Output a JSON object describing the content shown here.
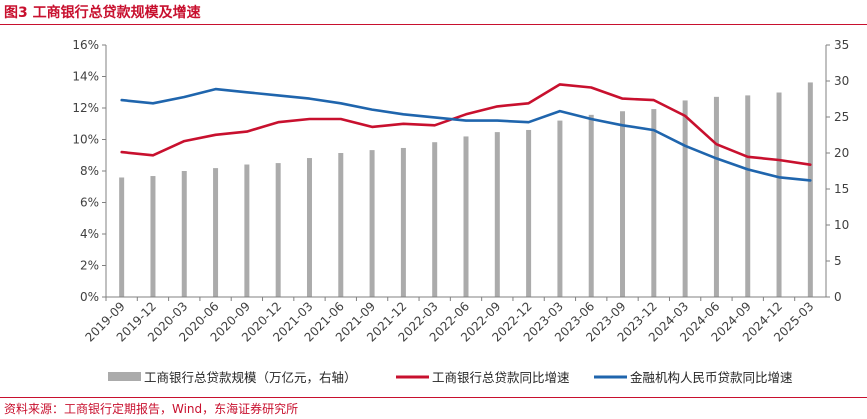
{
  "figure": {
    "title": "图3 工商银行总贷款规模及增速",
    "source": "资料来源：工商银行定期报告，Wind，东海证券研究所"
  },
  "colors": {
    "bar": "#ababab",
    "line_icbc": "#c8102e",
    "line_financial": "#1f65ad",
    "accent": "#c8102e"
  },
  "chart_data": {
    "type": "bar",
    "title": "",
    "categories": [
      "2019-09",
      "2019-12",
      "2020-03",
      "2020-06",
      "2020-09",
      "2020-12",
      "2021-03",
      "2021-06",
      "2021-09",
      "2021-12",
      "2022-03",
      "2022-06",
      "2022-09",
      "2022-12",
      "2023-03",
      "2023-06",
      "2023-09",
      "2023-12",
      "2024-03",
      "2024-06",
      "2024-09",
      "2024-12",
      "2025-03"
    ],
    "left_axis": {
      "range": [
        0,
        16
      ],
      "ticks": [
        "0%",
        "2%",
        "4%",
        "6%",
        "8%",
        "10%",
        "12%",
        "14%",
        "16%"
      ]
    },
    "right_axis": {
      "range": [
        0,
        35
      ],
      "ticks": [
        "0",
        "5",
        "10",
        "15",
        "20",
        "25",
        "30",
        "35"
      ]
    },
    "grid": false,
    "legend_position": "bottom",
    "series": [
      {
        "name": "工商银行总贷款规模（万亿元，右轴）",
        "kind": "bar",
        "axis": "right",
        "values": [
          16.6,
          16.8,
          17.5,
          17.9,
          18.4,
          18.6,
          19.3,
          20.0,
          20.4,
          20.7,
          21.5,
          22.3,
          22.9,
          23.2,
          24.5,
          25.3,
          25.8,
          26.1,
          27.3,
          27.8,
          28.0,
          28.4,
          29.8
        ]
      },
      {
        "name": "工商银行总贷款同比增速",
        "kind": "line",
        "axis": "left",
        "values": [
          9.2,
          9.0,
          9.9,
          10.3,
          10.5,
          11.1,
          11.3,
          11.3,
          10.8,
          11.0,
          10.9,
          11.6,
          12.1,
          12.3,
          13.5,
          13.3,
          12.6,
          12.5,
          11.5,
          9.7,
          8.9,
          8.7,
          8.4
        ]
      },
      {
        "name": "金融机构人民币贷款同比增速",
        "kind": "line",
        "axis": "left",
        "values": [
          12.5,
          12.3,
          12.7,
          13.2,
          13.0,
          12.8,
          12.6,
          12.3,
          11.9,
          11.6,
          11.4,
          11.2,
          11.2,
          11.1,
          11.8,
          11.3,
          10.9,
          10.6,
          9.6,
          8.8,
          8.1,
          7.6,
          7.4
        ]
      }
    ]
  }
}
